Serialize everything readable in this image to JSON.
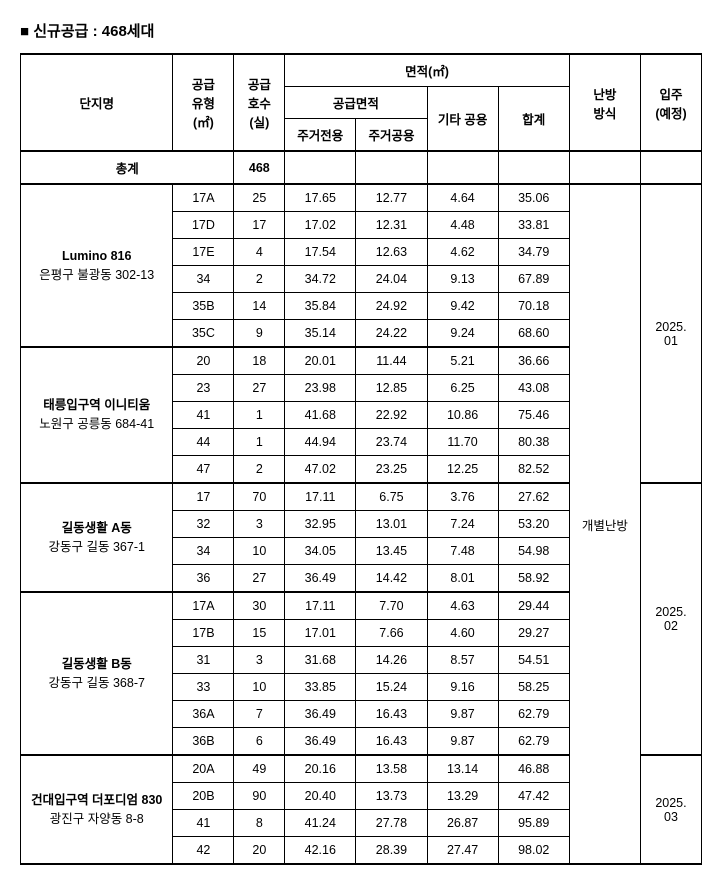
{
  "title": "■ 신규공급 : 468세대",
  "headers": {
    "complex": "단지명",
    "supplyType": "공급\n유형\n(㎡)",
    "units": "공급\n호수\n(실)",
    "areaGroup": "면적(㎡)",
    "supplyArea": "공급면적",
    "exclusive": "주거전용",
    "common": "주거공용",
    "otherCommon": "기타 공용",
    "total": "합계",
    "heating": "난방\n방식",
    "moveIn": "입주\n(예정)"
  },
  "totalRow": {
    "label": "총계",
    "units": "468"
  },
  "heatingValue": "개별난방",
  "complexes": [
    {
      "name": "Lumino 816",
      "addr": "은평구 불광동 302-13",
      "moveIn": "2025.\n01",
      "rows": [
        {
          "type": "17A",
          "units": "25",
          "excl": "17.65",
          "comm": "12.77",
          "other": "4.64",
          "tot": "35.06"
        },
        {
          "type": "17D",
          "units": "17",
          "excl": "17.02",
          "comm": "12.31",
          "other": "4.48",
          "tot": "33.81"
        },
        {
          "type": "17E",
          "units": "4",
          "excl": "17.54",
          "comm": "12.63",
          "other": "4.62",
          "tot": "34.79"
        },
        {
          "type": "34",
          "units": "2",
          "excl": "34.72",
          "comm": "24.04",
          "other": "9.13",
          "tot": "67.89"
        },
        {
          "type": "35B",
          "units": "14",
          "excl": "35.84",
          "comm": "24.92",
          "other": "9.42",
          "tot": "70.18"
        },
        {
          "type": "35C",
          "units": "9",
          "excl": "35.14",
          "comm": "24.22",
          "other": "9.24",
          "tot": "68.60"
        }
      ]
    },
    {
      "name": "태릉입구역 이니티움",
      "addr": "노원구 공릉동 684-41",
      "moveIn": null,
      "rows": [
        {
          "type": "20",
          "units": "18",
          "excl": "20.01",
          "comm": "11.44",
          "other": "5.21",
          "tot": "36.66"
        },
        {
          "type": "23",
          "units": "27",
          "excl": "23.98",
          "comm": "12.85",
          "other": "6.25",
          "tot": "43.08"
        },
        {
          "type": "41",
          "units": "1",
          "excl": "41.68",
          "comm": "22.92",
          "other": "10.86",
          "tot": "75.46"
        },
        {
          "type": "44",
          "units": "1",
          "excl": "44.94",
          "comm": "23.74",
          "other": "11.70",
          "tot": "80.38"
        },
        {
          "type": "47",
          "units": "2",
          "excl": "47.02",
          "comm": "23.25",
          "other": "12.25",
          "tot": "82.52"
        }
      ]
    },
    {
      "name": "길동생활 A동",
      "addr": "강동구 길동 367-1",
      "moveIn": "2025.\n02",
      "moveInSpan": 10,
      "rows": [
        {
          "type": "17",
          "units": "70",
          "excl": "17.11",
          "comm": "6.75",
          "other": "3.76",
          "tot": "27.62"
        },
        {
          "type": "32",
          "units": "3",
          "excl": "32.95",
          "comm": "13.01",
          "other": "7.24",
          "tot": "53.20"
        },
        {
          "type": "34",
          "units": "10",
          "excl": "34.05",
          "comm": "13.45",
          "other": "7.48",
          "tot": "54.98"
        },
        {
          "type": "36",
          "units": "27",
          "excl": "36.49",
          "comm": "14.42",
          "other": "8.01",
          "tot": "58.92"
        }
      ]
    },
    {
      "name": "길동생활 B동",
      "addr": "강동구 길동 368-7",
      "moveIn": null,
      "rows": [
        {
          "type": "17A",
          "units": "30",
          "excl": "17.11",
          "comm": "7.70",
          "other": "4.63",
          "tot": "29.44"
        },
        {
          "type": "17B",
          "units": "15",
          "excl": "17.01",
          "comm": "7.66",
          "other": "4.60",
          "tot": "29.27"
        },
        {
          "type": "31",
          "units": "3",
          "excl": "31.68",
          "comm": "14.26",
          "other": "8.57",
          "tot": "54.51"
        },
        {
          "type": "33",
          "units": "10",
          "excl": "33.85",
          "comm": "15.24",
          "other": "9.16",
          "tot": "58.25"
        },
        {
          "type": "36A",
          "units": "7",
          "excl": "36.49",
          "comm": "16.43",
          "other": "9.87",
          "tot": "62.79"
        },
        {
          "type": "36B",
          "units": "6",
          "excl": "36.49",
          "comm": "16.43",
          "other": "9.87",
          "tot": "62.79"
        }
      ]
    },
    {
      "name": "건대입구역 더포디엄 830",
      "addr": "광진구 자양동 8-8",
      "moveIn": "2025.\n03",
      "rows": [
        {
          "type": "20A",
          "units": "49",
          "excl": "20.16",
          "comm": "13.58",
          "other": "13.14",
          "tot": "46.88"
        },
        {
          "type": "20B",
          "units": "90",
          "excl": "20.40",
          "comm": "13.73",
          "other": "13.29",
          "tot": "47.42"
        },
        {
          "type": "41",
          "units": "8",
          "excl": "41.24",
          "comm": "27.78",
          "other": "26.87",
          "tot": "95.89"
        },
        {
          "type": "42",
          "units": "20",
          "excl": "42.16",
          "comm": "28.39",
          "other": "27.47",
          "tot": "98.02"
        }
      ]
    }
  ],
  "colWidths": [
    "150",
    "60",
    "50",
    "70",
    "70",
    "70",
    "70",
    "70",
    "60"
  ]
}
